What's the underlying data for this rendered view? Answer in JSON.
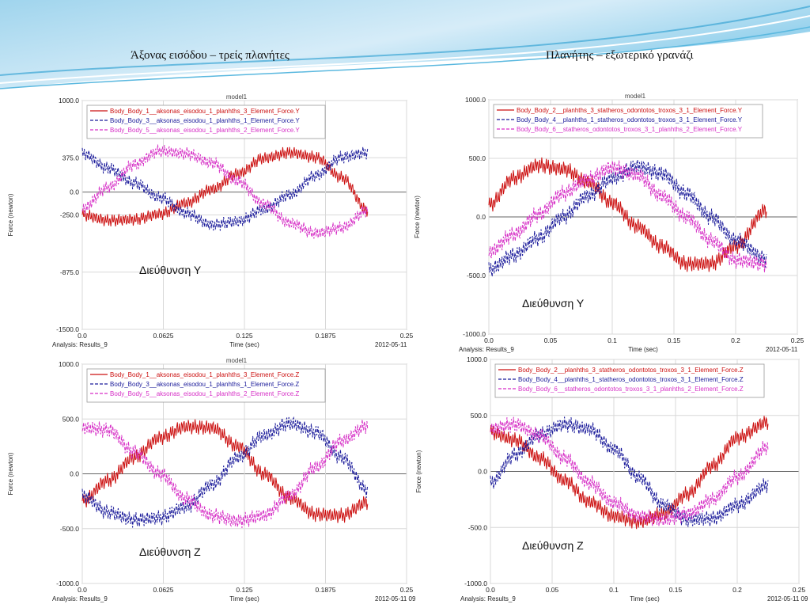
{
  "slide": {
    "title_left": "Άξονας εισόδου – τρείς πλανήτες",
    "title_right": "Πλανήτης – εξωτερικό γρανάζι"
  },
  "colors": {
    "red": "#cc1111",
    "blue": "#1a1a9a",
    "magenta": "#d62fc6",
    "grid": "#d8d8d8",
    "banner_light": "#cfe9f7",
    "banner_mid": "#8fcdea",
    "banner_dark": "#3aa5d4"
  },
  "chart_data": [
    {
      "type": "line",
      "title": "model1",
      "ylabel": "Force (newton)",
      "xlabel": "Time (sec)",
      "analysis": "Analysis:  Results_9",
      "date": "2012-05-11",
      "direction_label": "Διεύθυνση Υ",
      "xlim": [
        0,
        0.25
      ],
      "ylim": [
        -1500,
        1000
      ],
      "xticks": [
        "0.0",
        "0.0625",
        "0.125",
        "0.1875",
        "0.25"
      ],
      "yticks": [
        "1000.0",
        "375.0",
        "0.0",
        "-250.0",
        "-875.0",
        "-1500.0"
      ],
      "ytick_values": [
        1000,
        375,
        0,
        -250,
        -875,
        -1500
      ],
      "xticks_values": [
        0,
        0.0625,
        0.125,
        0.1875,
        0.25
      ],
      "legend": "top-left",
      "x": [
        0.0,
        0.02,
        0.04,
        0.06,
        0.08,
        0.1,
        0.12,
        0.14,
        0.16,
        0.18,
        0.2,
        0.22
      ],
      "series": [
        {
          "name": "Body_Body_1__aksonas_eisodou_1_planhths_3_Element_Force.Y",
          "color": "red",
          "style": "solid",
          "values": [
            -250,
            -310,
            -300,
            -240,
            -120,
            30,
            200,
            370,
            430,
            380,
            160,
            -200
          ]
        },
        {
          "name": "Body_Body_3__aksonas_eisodou_1_planhths_1_Element_Force.Y",
          "color": "blue",
          "style": "dashed",
          "values": [
            420,
            260,
            100,
            -60,
            -230,
            -360,
            -320,
            -190,
            -30,
            180,
            380,
            430
          ]
        },
        {
          "name": "Body_Body_5__aksonas_eisodou_1_planhths_2_Element_Force.Y",
          "color": "magenta",
          "style": "dashed",
          "values": [
            -180,
            50,
            300,
            450,
            420,
            320,
            120,
            -130,
            -340,
            -450,
            -390,
            -200
          ]
        }
      ]
    },
    {
      "type": "line",
      "title": "model1",
      "ylabel": "Force (newton)",
      "xlabel": "Time (sec)",
      "analysis": "Analysis:  Results_9",
      "date": "2012-05-11",
      "direction_label": "Διεύθυνση Υ",
      "xlim": [
        0,
        0.25
      ],
      "ylim": [
        -1000,
        1000
      ],
      "xticks": [
        "0.0",
        "0.05",
        "0.1",
        "0.15",
        "0.2",
        "0.25"
      ],
      "yticks": [
        "1000.0",
        "500.0",
        "0.0",
        "-500.0",
        "-1000.0"
      ],
      "ytick_values": [
        1000,
        500,
        0,
        -500,
        -1000
      ],
      "xticks_values": [
        0,
        0.05,
        0.1,
        0.15,
        0.2,
        0.25
      ],
      "legend": "top-left",
      "x": [
        0.0,
        0.02,
        0.04,
        0.06,
        0.08,
        0.1,
        0.12,
        0.14,
        0.16,
        0.18,
        0.2,
        0.225
      ],
      "series": [
        {
          "name": "Body_Body_2__planhths_3_statheros_odontotos_troxos_3_1_Element_Force.Y",
          "color": "red",
          "style": "solid",
          "values": [
            100,
            330,
            440,
            410,
            300,
            120,
            -80,
            -250,
            -400,
            -400,
            -250,
            60
          ]
        },
        {
          "name": "Body_Body_4__planhths_1_statheros_odontotos_troxos_3_1_Element_Force.Y",
          "color": "blue",
          "style": "dashed",
          "values": [
            -450,
            -330,
            -180,
            0,
            180,
            330,
            430,
            370,
            200,
            0,
            -200,
            -360
          ]
        },
        {
          "name": "Body_Body_6__statheros_odontotos_troxos_3_1_planhths_2_Element_Force.Y",
          "color": "magenta",
          "style": "dashed",
          "values": [
            -300,
            -150,
            20,
            200,
            320,
            420,
            360,
            180,
            0,
            -200,
            -370,
            -400
          ]
        }
      ]
    },
    {
      "type": "line",
      "title": "model1",
      "ylabel": "Force (newton)",
      "xlabel": "Time (sec)",
      "analysis": "Analysis:  Results_9",
      "date": "2012-05-11 09",
      "direction_label": "Διεύθυνση Ζ",
      "xlim": [
        0,
        0.25
      ],
      "ylim": [
        -1000,
        1000
      ],
      "xticks": [
        "0.0",
        "0.0625",
        "0.125",
        "0.1875",
        "0.25"
      ],
      "yticks": [
        "1000.0",
        "500.0",
        "0.0",
        "-500.0",
        "-1000.0"
      ],
      "ytick_values": [
        1000,
        500,
        0,
        -500,
        -1000
      ],
      "xticks_values": [
        0,
        0.0625,
        0.125,
        0.1875,
        0.25
      ],
      "legend": "top-left",
      "x": [
        0.0,
        0.02,
        0.04,
        0.06,
        0.08,
        0.1,
        0.12,
        0.14,
        0.16,
        0.18,
        0.2,
        0.22
      ],
      "series": [
        {
          "name": "Body_Body_1__aksonas_eisodou_1_planhths_3_Element_Force.Z",
          "color": "red",
          "style": "solid",
          "values": [
            -250,
            -60,
            150,
            330,
            430,
            420,
            250,
            0,
            -220,
            -370,
            -380,
            -260
          ]
        },
        {
          "name": "Body_Body_3__aksonas_eisodou_1_planhths_1_Element_Force.Z",
          "color": "blue",
          "style": "dashed",
          "values": [
            -200,
            -350,
            -420,
            -400,
            -300,
            -100,
            150,
            350,
            460,
            380,
            150,
            -150
          ]
        },
        {
          "name": "Body_Body_5__aksonas_eisodou_1_planhths_2_Element_Force.Z",
          "color": "magenta",
          "style": "dashed",
          "values": [
            420,
            400,
            200,
            0,
            -230,
            -380,
            -430,
            -380,
            -200,
            60,
            300,
            440
          ]
        }
      ]
    },
    {
      "type": "line",
      "title": "",
      "ylabel": "Force (newton)",
      "xlabel": "Time (sec)",
      "analysis": "Analysis:  Results_9",
      "date": "2012-05-11 09",
      "direction_label": "Διεύθυνση Ζ",
      "xlim": [
        0,
        0.25
      ],
      "ylim": [
        -1000,
        1000
      ],
      "xticks": [
        "0.0",
        "0.05",
        "0.1",
        "0.15",
        "0.2",
        "0.25"
      ],
      "yticks": [
        "1000.0",
        "500.0",
        "0.0",
        "-500.0",
        "-1000.0"
      ],
      "ytick_values": [
        1000,
        500,
        0,
        -500,
        -1000
      ],
      "xticks_values": [
        0,
        0.05,
        0.1,
        0.15,
        0.2,
        0.25
      ],
      "legend": "top-left",
      "x": [
        0.0,
        0.02,
        0.04,
        0.06,
        0.08,
        0.1,
        0.12,
        0.14,
        0.16,
        0.18,
        0.2,
        0.225
      ],
      "series": [
        {
          "name": "Body_Body_2__planhths_3_statheros_odontotos_troxos_3_1_Element_Force.Z",
          "color": "red",
          "style": "solid",
          "values": [
            350,
            280,
            120,
            -80,
            -270,
            -400,
            -450,
            -380,
            -200,
            50,
            300,
            440
          ]
        },
        {
          "name": "Body_Body_4__planhths_1_statheros_odontotos_troxos_3_1_Element_Force.Z",
          "color": "blue",
          "style": "dashed",
          "values": [
            -100,
            150,
            330,
            420,
            380,
            200,
            -50,
            -300,
            -430,
            -420,
            -300,
            -120
          ]
        },
        {
          "name": "Body_Body_6__statheros_odontotos_troxos_3_1_planhths_2_Element_Force.Z",
          "color": "magenta",
          "style": "dashed",
          "values": [
            380,
            420,
            320,
            120,
            -100,
            -280,
            -400,
            -430,
            -380,
            -250,
            -50,
            220
          ]
        }
      ]
    }
  ]
}
